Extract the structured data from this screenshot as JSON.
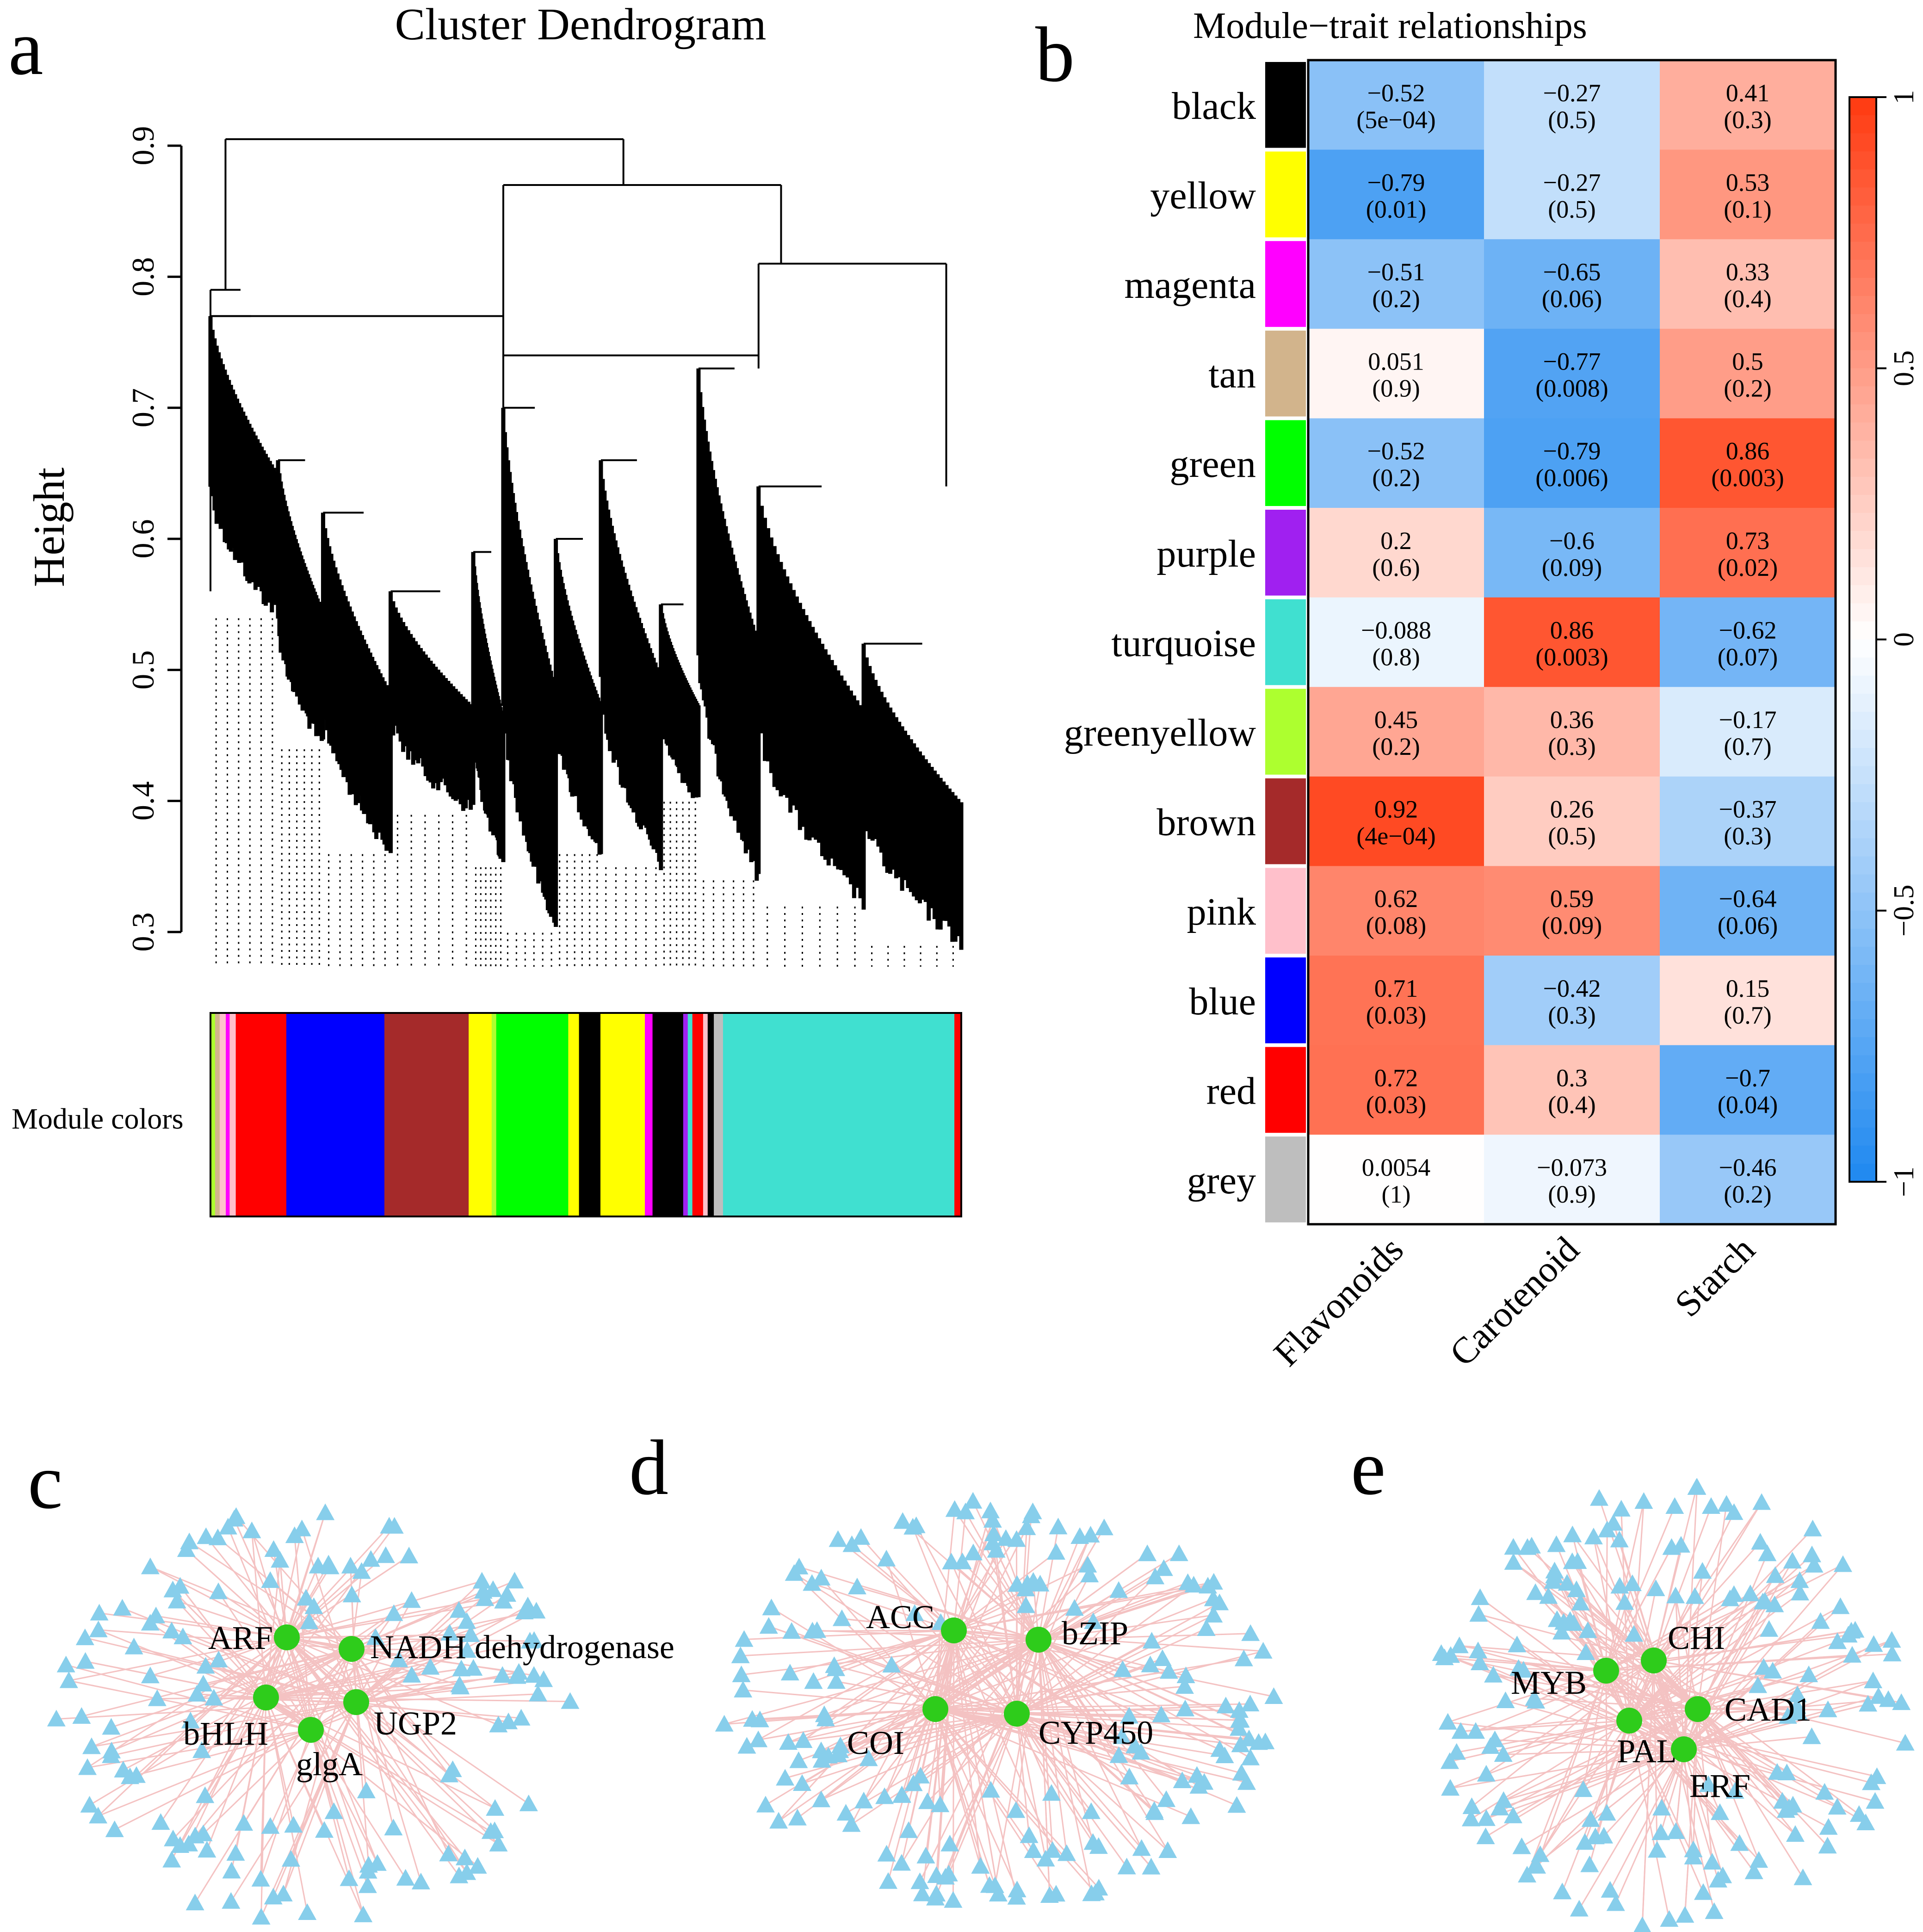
{
  "panel_labels": {
    "a": "a",
    "b": "b",
    "c": "c",
    "d": "d",
    "e": "e"
  },
  "colors": {
    "heat_neg": "#1E88F0",
    "heat_mid": "#FFFFFF",
    "heat_pos": "#FF3A10",
    "edge": "#F4C2C2",
    "gene_node": "#1BC71B",
    "hub_node": "#2ECC1B"
  },
  "chart_data": [
    {
      "type": "dendrogram",
      "title": "Cluster Dendrogram",
      "ylabel": "Height",
      "ylim": [
        0.3,
        0.93
      ],
      "yticks": [
        "0.3",
        "0.4",
        "0.5",
        "0.6",
        "0.7",
        "0.8",
        "0.9"
      ],
      "ytick_values": [
        0.3,
        0.4,
        0.5,
        0.6,
        0.7,
        0.8,
        0.9
      ],
      "module_colors_label": "Module colors",
      "top_merges": [
        {
          "height": 0.905,
          "left_x": 0.0,
          "right_x": 1.0
        },
        {
          "height": 0.87,
          "left_x": 0.0,
          "right_x": 1.0
        },
        {
          "height": 0.81,
          "left_x": 0.0,
          "right_x": 1.0
        }
      ],
      "module_color_bar": [
        {
          "module": "greenyellow",
          "color": "#ADFF2F",
          "fraction": 0.006
        },
        {
          "module": "tan",
          "color": "#D2B48C",
          "fraction": 0.006
        },
        {
          "module": "pink",
          "color": "#FFC0CB",
          "fraction": 0.008
        },
        {
          "module": "magenta",
          "color": "#FF00FF",
          "fraction": 0.005
        },
        {
          "module": "pink",
          "color": "#FFC0CB",
          "fraction": 0.008
        },
        {
          "module": "red",
          "color": "#FF0000",
          "fraction": 0.066
        },
        {
          "module": "blue",
          "color": "#0000FF",
          "fraction": 0.128
        },
        {
          "module": "brown",
          "color": "#A52A2A",
          "fraction": 0.11
        },
        {
          "module": "yellow",
          "color": "#FFFF00",
          "fraction": 0.03
        },
        {
          "module": "greenyellow",
          "color": "#ADFF2F",
          "fraction": 0.006
        },
        {
          "module": "green",
          "color": "#00FF00",
          "fraction": 0.094
        },
        {
          "module": "yellow",
          "color": "#FFFF00",
          "fraction": 0.014
        },
        {
          "module": "black",
          "color": "#000000",
          "fraction": 0.028
        },
        {
          "module": "yellow",
          "color": "#FFFF00",
          "fraction": 0.058
        },
        {
          "module": "magenta",
          "color": "#FF00FF",
          "fraction": 0.01
        },
        {
          "module": "black",
          "color": "#000000",
          "fraction": 0.04
        },
        {
          "module": "purple",
          "color": "#A020F0",
          "fraction": 0.006
        },
        {
          "module": "turquoise",
          "color": "#40E0D0",
          "fraction": 0.006
        },
        {
          "module": "red",
          "color": "#FF0000",
          "fraction": 0.014
        },
        {
          "module": "pink",
          "color": "#FFC0CB",
          "fraction": 0.006
        },
        {
          "module": "black",
          "color": "#000000",
          "fraction": 0.008
        },
        {
          "module": "grey",
          "color": "#BEBEBE",
          "fraction": 0.012
        },
        {
          "module": "turquoise",
          "color": "#40E0D0",
          "fraction": 0.302
        },
        {
          "module": "red",
          "color": "#FF0000",
          "fraction": 0.009
        }
      ]
    },
    {
      "type": "heatmap",
      "title": "Module−trait relationships",
      "columns": [
        "Flavonoids",
        "Carotenoid",
        "Starch"
      ],
      "rows": [
        {
          "module": "black",
          "color": "#000000",
          "corr": [
            "−0.52",
            "−0.27",
            "0.41"
          ],
          "pvalue": [
            "(5e−04)",
            "(0.5)",
            "(0.3)"
          ],
          "values": [
            -0.52,
            -0.27,
            0.41
          ]
        },
        {
          "module": "yellow",
          "color": "#FFFF00",
          "corr": [
            "−0.79",
            "−0.27",
            "0.53"
          ],
          "pvalue": [
            "(0.01)",
            "(0.5)",
            "(0.1)"
          ],
          "values": [
            -0.79,
            -0.27,
            0.53
          ]
        },
        {
          "module": "magenta",
          "color": "#FF00FF",
          "corr": [
            "−0.51",
            "−0.65",
            "0.33"
          ],
          "pvalue": [
            "(0.2)",
            "(0.06)",
            "(0.4)"
          ],
          "values": [
            -0.51,
            -0.65,
            0.33
          ]
        },
        {
          "module": "tan",
          "color": "#D2B48C",
          "corr": [
            "0.051",
            "−0.77",
            "0.5"
          ],
          "pvalue": [
            "(0.9)",
            "(0.008)",
            "(0.2)"
          ],
          "values": [
            0.051,
            -0.77,
            0.5
          ]
        },
        {
          "module": "green",
          "color": "#00FF00",
          "corr": [
            "−0.52",
            "−0.79",
            "0.86"
          ],
          "pvalue": [
            "(0.2)",
            "(0.006)",
            "(0.003)"
          ],
          "values": [
            -0.52,
            -0.79,
            0.86
          ]
        },
        {
          "module": "purple",
          "color": "#A020F0",
          "corr": [
            "0.2",
            "−0.6",
            "0.73"
          ],
          "pvalue": [
            "(0.6)",
            "(0.09)",
            "(0.02)"
          ],
          "values": [
            0.2,
            -0.6,
            0.73
          ]
        },
        {
          "module": "turquoise",
          "color": "#40E0D0",
          "corr": [
            "−0.088",
            "0.86",
            "−0.62"
          ],
          "pvalue": [
            "(0.8)",
            "(0.003)",
            "(0.07)"
          ],
          "values": [
            -0.088,
            0.86,
            -0.62
          ]
        },
        {
          "module": "greenyellow",
          "color": "#ADFF2F",
          "corr": [
            "0.45",
            "0.36",
            "−0.17"
          ],
          "pvalue": [
            "(0.2)",
            "(0.3)",
            "(0.7)"
          ],
          "values": [
            0.45,
            0.36,
            -0.17
          ]
        },
        {
          "module": "brown",
          "color": "#A52A2A",
          "corr": [
            "0.92",
            "0.26",
            "−0.37"
          ],
          "pvalue": [
            "(4e−04)",
            "(0.5)",
            "(0.3)"
          ],
          "values": [
            0.92,
            0.26,
            -0.37
          ]
        },
        {
          "module": "pink",
          "color": "#FFC0CB",
          "corr": [
            "0.62",
            "0.59",
            "−0.64"
          ],
          "pvalue": [
            "(0.08)",
            "(0.09)",
            "(0.06)"
          ],
          "values": [
            0.62,
            0.59,
            -0.64
          ]
        },
        {
          "module": "blue",
          "color": "#0000FF",
          "corr": [
            "0.71",
            "−0.42",
            "0.15"
          ],
          "pvalue": [
            "(0.03)",
            "(0.3)",
            "(0.7)"
          ],
          "values": [
            0.71,
            -0.42,
            0.15
          ]
        },
        {
          "module": "red",
          "color": "#FF0000",
          "corr": [
            "0.72",
            "0.3",
            "−0.7"
          ],
          "pvalue": [
            "(0.03)",
            "(0.4)",
            "(0.04)"
          ],
          "values": [
            0.72,
            0.3,
            -0.7
          ]
        },
        {
          "module": "grey",
          "color": "#BEBEBE",
          "corr": [
            "0.0054",
            "−0.073",
            "−0.46"
          ],
          "pvalue": [
            "(1)",
            "(0.9)",
            "(0.2)"
          ],
          "values": [
            0.0054,
            -0.073,
            -0.46
          ]
        }
      ],
      "colorbar": {
        "range": [
          -1,
          1
        ],
        "ticks": [
          "1",
          "0.5",
          "0",
          "−0.5",
          "−1"
        ],
        "tick_values": [
          1,
          0.5,
          0,
          -0.5,
          -1
        ]
      }
    },
    {
      "type": "network",
      "panel": "c",
      "hubs": [
        "ARF",
        "NADH dehydrogenase",
        "bHLH",
        "UGP2",
        "glgA"
      ],
      "neighbor_count": 150
    },
    {
      "type": "network",
      "panel": "d",
      "hubs": [
        "ACC",
        "bZIP",
        "COI",
        "CYP450"
      ],
      "neighbor_count": 190
    },
    {
      "type": "network",
      "panel": "e",
      "hubs": [
        "CHI",
        "MYB",
        "CAD1",
        "PAL",
        "ERF"
      ],
      "neighbor_count": 175
    }
  ]
}
